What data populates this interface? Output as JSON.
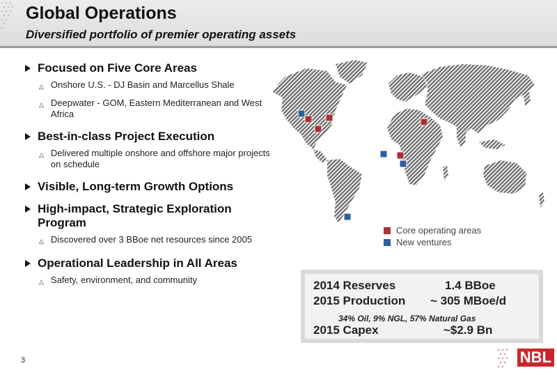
{
  "header": {
    "title": "Global Operations",
    "subtitle": "Diversified portfolio of premier operating assets"
  },
  "bullets": [
    {
      "text": "Focused on Five Core Areas",
      "subs": [
        "Onshore U.S. - DJ Basin and Marcellus Shale",
        "Deepwater - GOM, Eastern Mediterranean and West Africa"
      ]
    },
    {
      "text": "Best-in-class Project Execution",
      "subs": [
        "Delivered multiple onshore and offshore major projects on schedule"
      ]
    },
    {
      "text": "Visible, Long-term Growth Options",
      "subs": []
    },
    {
      "text": "High-impact, Strategic Exploration Program",
      "subs": [
        "Discovered over 3 BBoe net resources since 2005"
      ]
    },
    {
      "text": "Operational Leadership in All Areas",
      "subs": [
        "Safety, environment, and community"
      ]
    }
  ],
  "legend": {
    "core": {
      "label": "Core operating areas",
      "color": "#a83232"
    },
    "new": {
      "label": "New ventures",
      "color": "#2f5f9e"
    }
  },
  "stats": {
    "reserves_label": "2014 Reserves",
    "reserves_value": "1.4 BBoe",
    "production_label": "2015 Production",
    "production_value": "~ 305 MBoe/d",
    "mix": "34% Oil, 9% NGL, 57% Natural Gas",
    "capex_label": "2015 Capex",
    "capex_value": "~$2.9 Bn"
  },
  "page_number": "3",
  "logo_text": "NBL"
}
